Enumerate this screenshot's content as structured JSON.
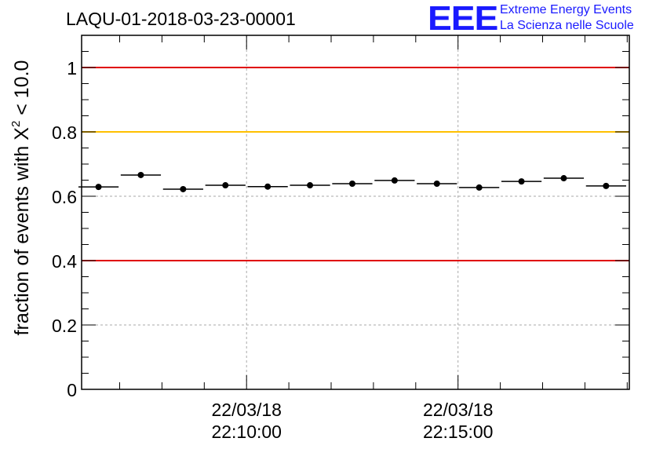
{
  "chart_data": {
    "type": "scatter",
    "title": "LAQU-01-2018-03-23-00001",
    "ylabel_main": "fraction of events with X",
    "ylabel_sup": "2",
    "ylabel_tail": " < 10.0",
    "xlabel": "",
    "ylim": [
      0,
      1.1
    ],
    "y_ticks": [
      0,
      0.2,
      0.4,
      0.6,
      0.8,
      1
    ],
    "y_tick_labels": [
      "0",
      "0.2",
      "0.4",
      "0.6",
      "0.8",
      "1"
    ],
    "x_unit": "minutes since 22:00:00",
    "xlim": [
      6.1,
      19.05
    ],
    "x_ticks": [
      10,
      15
    ],
    "x_tick_labels": [
      [
        "22/03/18",
        "22:10:00"
      ],
      [
        "22/03/18",
        "22:15:00"
      ]
    ],
    "reference_lines": [
      {
        "y": 1.0,
        "color": "#e00000"
      },
      {
        "y": 0.8,
        "color": "#ffc000"
      },
      {
        "y": 0.4,
        "color": "#e00000"
      }
    ],
    "bin_width": 0.95,
    "x": [
      6.5,
      7.5,
      8.5,
      9.5,
      10.5,
      11.5,
      12.5,
      13.5,
      14.5,
      15.5,
      16.5,
      17.5,
      18.5
    ],
    "values": [
      0.629,
      0.666,
      0.622,
      0.634,
      0.63,
      0.634,
      0.639,
      0.649,
      0.639,
      0.627,
      0.646,
      0.656,
      0.632
    ]
  },
  "branding": {
    "logo": "EEE",
    "line1": "Extreme Energy Events",
    "line2": "La Scienza nelle Scuole",
    "color": "#1a1aff"
  }
}
